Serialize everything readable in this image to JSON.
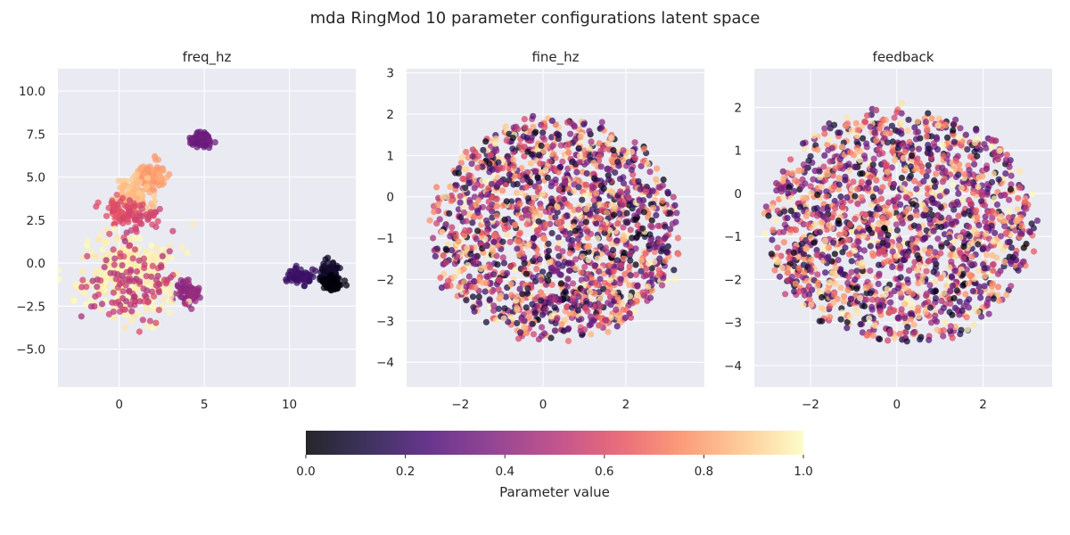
{
  "title": "mda RingMod 10 parameter configurations latent space",
  "colorbar": {
    "label": "Parameter value",
    "range": [
      0,
      1
    ],
    "ticks": [
      "0.0",
      "0.2",
      "0.4",
      "0.6",
      "0.8",
      "1.0"
    ],
    "colormap": "magma"
  },
  "chart_data": [
    {
      "type": "scatter",
      "title": "freq_hz",
      "xlim": [
        -3.6,
        13.9
      ],
      "ylim": [
        -7.2,
        11.3
      ],
      "xticks": [
        0,
        5,
        10
      ],
      "yticks": [
        -5.0,
        -2.5,
        0.0,
        2.5,
        5.0,
        7.5,
        10.0
      ],
      "grid": true,
      "clusters": [
        {
          "cx": 4.8,
          "cy": 7.2,
          "sx": 0.3,
          "sy": 0.25,
          "n": 70,
          "value_range": [
            0.3,
            0.34
          ]
        },
        {
          "cx": 1.9,
          "cy": 5.1,
          "sx": 0.45,
          "sy": 0.38,
          "n": 110,
          "value_range": [
            0.77,
            0.83
          ]
        },
        {
          "cx": 0.9,
          "cy": 4.0,
          "sx": 0.45,
          "sy": 0.45,
          "n": 90,
          "value_range": [
            0.84,
            0.9
          ]
        },
        {
          "cx": 0.2,
          "cy": 3.0,
          "sx": 0.5,
          "sy": 0.35,
          "n": 60,
          "value_range": [
            0.58,
            0.64
          ]
        },
        {
          "cx": 1.2,
          "cy": 2.6,
          "sx": 0.6,
          "sy": 0.3,
          "n": 35,
          "value_range": [
            0.55,
            0.62
          ]
        },
        {
          "cx": 12.4,
          "cy": -0.6,
          "sx": 0.35,
          "sy": 0.3,
          "n": 80,
          "value_range": [
            0.05,
            0.1
          ]
        },
        {
          "cx": 12.4,
          "cy": -1.2,
          "sx": 0.3,
          "sy": 0.25,
          "n": 50,
          "value_range": [
            0.0,
            0.03
          ]
        },
        {
          "cx": 10.6,
          "cy": -0.8,
          "sx": 0.3,
          "sy": 0.22,
          "n": 70,
          "value_range": [
            0.18,
            0.22
          ]
        },
        {
          "cx": 4.0,
          "cy": -1.7,
          "sx": 0.35,
          "sy": 0.35,
          "n": 90,
          "value_range": [
            0.38,
            0.44
          ]
        },
        {
          "cx": 0.6,
          "cy": -0.6,
          "sx": 1.5,
          "sy": 1.2,
          "n": 320,
          "value_range": [
            0.95,
            1.0
          ]
        },
        {
          "cx": 0.8,
          "cy": -1.0,
          "sx": 1.3,
          "sy": 1.2,
          "n": 120,
          "value_range": [
            0.45,
            0.6
          ]
        }
      ]
    },
    {
      "type": "scatter",
      "title": "fine_hz",
      "xlim": [
        -3.3,
        3.9
      ],
      "ylim": [
        -4.6,
        3.1
      ],
      "xticks": [
        -2,
        0,
        2
      ],
      "yticks": [
        -4,
        -3,
        -2,
        -1,
        0,
        1,
        2,
        3
      ],
      "grid": true,
      "distribution": {
        "shape": "ring",
        "center": [
          0.3,
          -0.8
        ],
        "radius_x": 3.0,
        "radius_y": 2.7,
        "inner_fraction": 0.45,
        "n": 1700,
        "value_range": [
          0,
          1
        ]
      }
    },
    {
      "type": "scatter",
      "title": "feedback",
      "xlim": [
        -3.3,
        3.6
      ],
      "ylim": [
        -4.5,
        2.9
      ],
      "xticks": [
        -2,
        0,
        2
      ],
      "yticks": [
        -4,
        -3,
        -2,
        -1,
        0,
        1,
        2
      ],
      "grid": true,
      "distribution": {
        "shape": "ring",
        "center": [
          0.1,
          -0.75
        ],
        "radius_x": 3.1,
        "radius_y": 2.75,
        "inner_fraction": 0.45,
        "n": 1700,
        "value_range": [
          0,
          1
        ]
      }
    }
  ]
}
